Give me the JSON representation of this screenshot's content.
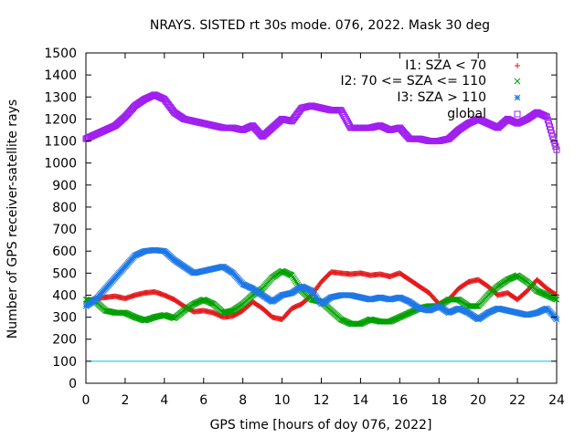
{
  "chart_data": {
    "type": "scatter",
    "title": "NRAYS. SISTED rt 30s mode. 076, 2022. Mask 30 deg",
    "xlabel": "GPS time [hours of doy 076, 2022]",
    "ylabel": "Number of GPS receiver-satellite rays",
    "xlim": [
      0,
      24
    ],
    "ylim": [
      0,
      1500
    ],
    "xticks": [
      "0",
      "2",
      "4",
      "6",
      "8",
      "10",
      "12",
      "14",
      "16",
      "18",
      "20",
      "22",
      "24"
    ],
    "yticks": [
      "0",
      "100",
      "200",
      "300",
      "400",
      "500",
      "600",
      "700",
      "800",
      "900",
      "1000",
      "1100",
      "1200",
      "1300",
      "1400",
      "1500"
    ],
    "legend_position": "top-right",
    "reference_line": {
      "value": 100,
      "color": "#00c0e0"
    },
    "series": [
      {
        "name": "I1: SZA < 70",
        "marker": "+",
        "color": "#e41a1c",
        "x": [
          0,
          0.5,
          1,
          1.5,
          2,
          2.5,
          3,
          3.5,
          4,
          4.5,
          5,
          5.5,
          6,
          6.5,
          7,
          7.5,
          8,
          8.5,
          9,
          9.5,
          10,
          10.5,
          11,
          11.5,
          12,
          12.5,
          13,
          13.5,
          14,
          14.5,
          15,
          15.5,
          16,
          16.5,
          17,
          17.5,
          18,
          18.5,
          19,
          19.5,
          20,
          20.5,
          21,
          21.5,
          22,
          22.5,
          23,
          23.5,
          24
        ],
        "y": [
          370,
          385,
          390,
          395,
          385,
          400,
          410,
          415,
          400,
          380,
          350,
          325,
          330,
          320,
          300,
          305,
          330,
          370,
          340,
          300,
          290,
          340,
          360,
          400,
          460,
          505,
          500,
          495,
          500,
          490,
          495,
          485,
          500,
          470,
          440,
          410,
          360,
          380,
          430,
          460,
          470,
          440,
          400,
          410,
          380,
          420,
          470,
          430,
          400
        ]
      },
      {
        "name": "I2: 70 <= SZA <= 110",
        "marker": "x",
        "color": "#00a000",
        "x": [
          0,
          0.5,
          1,
          1.5,
          2,
          2.5,
          3,
          3.5,
          4,
          4.5,
          5,
          5.5,
          6,
          6.5,
          7,
          7.5,
          8,
          8.5,
          9,
          9.5,
          10,
          10.5,
          11,
          11.5,
          12,
          12.5,
          13,
          13.5,
          14,
          14.5,
          15,
          15.5,
          16,
          16.5,
          17,
          17.5,
          18,
          18.5,
          19,
          19.5,
          20,
          20.5,
          21,
          21.5,
          22,
          22.5,
          23,
          23.5,
          24
        ],
        "y": [
          380,
          370,
          330,
          320,
          320,
          300,
          285,
          300,
          310,
          295,
          330,
          360,
          380,
          360,
          320,
          330,
          360,
          400,
          430,
          480,
          510,
          490,
          420,
          380,
          370,
          330,
          290,
          270,
          270,
          290,
          280,
          280,
          300,
          320,
          340,
          350,
          350,
          380,
          380,
          350,
          350,
          400,
          440,
          470,
          490,
          460,
          420,
          400,
          380
        ]
      },
      {
        "name": "I3: SZA > 110",
        "marker": "*",
        "color": "#1e78e6",
        "x": [
          0,
          0.5,
          1,
          1.5,
          2,
          2.5,
          3,
          3.5,
          4,
          4.5,
          5,
          5.5,
          6,
          6.5,
          7,
          7.5,
          8,
          8.5,
          9,
          9.5,
          10,
          10.5,
          11,
          11.5,
          12,
          12.5,
          13,
          13.5,
          14,
          14.5,
          15,
          15.5,
          16,
          16.5,
          17,
          17.5,
          18,
          18.5,
          19,
          19.5,
          20,
          20.5,
          21,
          21.5,
          22,
          22.5,
          23,
          23.5,
          24
        ],
        "y": [
          350,
          380,
          430,
          480,
          530,
          580,
          600,
          605,
          600,
          560,
          530,
          500,
          510,
          520,
          530,
          500,
          450,
          430,
          400,
          370,
          400,
          410,
          440,
          420,
          360,
          390,
          400,
          400,
          390,
          380,
          390,
          380,
          390,
          370,
          340,
          330,
          350,
          320,
          340,
          320,
          290,
          320,
          340,
          330,
          320,
          310,
          320,
          340,
          290
        ]
      },
      {
        "name": "global",
        "marker": "square",
        "color": "#a020f0",
        "x": [
          0,
          0.5,
          1,
          1.5,
          2,
          2.5,
          3,
          3.5,
          4,
          4.5,
          5,
          5.5,
          6,
          6.5,
          7,
          7.5,
          8,
          8.5,
          9,
          9.5,
          10,
          10.5,
          11,
          11.5,
          12,
          12.5,
          13,
          13.5,
          14,
          14.5,
          15,
          15.5,
          16,
          16.5,
          17,
          17.5,
          18,
          18.5,
          19,
          19.5,
          20,
          20.5,
          21,
          21.5,
          22,
          22.5,
          23,
          23.5,
          24
        ],
        "y": [
          1110,
          1130,
          1150,
          1170,
          1210,
          1260,
          1290,
          1310,
          1290,
          1230,
          1200,
          1190,
          1180,
          1170,
          1160,
          1160,
          1150,
          1170,
          1120,
          1160,
          1200,
          1190,
          1250,
          1260,
          1250,
          1240,
          1240,
          1160,
          1160,
          1160,
          1170,
          1150,
          1160,
          1110,
          1110,
          1100,
          1100,
          1110,
          1150,
          1180,
          1200,
          1180,
          1160,
          1200,
          1180,
          1200,
          1230,
          1210,
          1060
        ]
      }
    ]
  }
}
